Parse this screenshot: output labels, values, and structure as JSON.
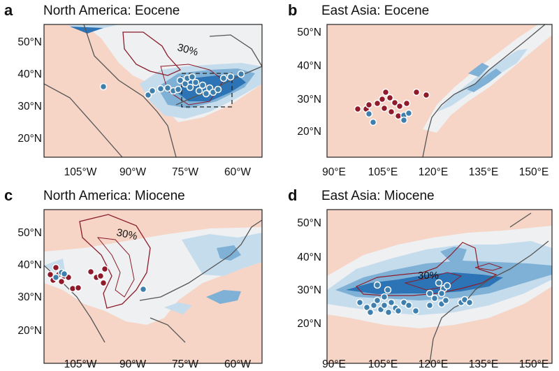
{
  "panels": [
    {
      "letter": "a",
      "title": "North America: Eocene",
      "lat_ticks": [
        "50°N",
        "40°N",
        "30°N",
        "20°N"
      ],
      "lon_ticks": [
        "105°W",
        "90°W",
        "75°W",
        "60°W"
      ],
      "contour_label": "30%"
    },
    {
      "letter": "b",
      "title": "East Asia: Eocene",
      "lat_ticks": [
        "50°N",
        "40°N",
        "30°N",
        "20°N"
      ],
      "lon_ticks": [
        "90°E",
        "105°E",
        "120°E",
        "135°E",
        "150°E"
      ],
      "contour_label": ""
    },
    {
      "letter": "c",
      "title": "North America: Miocene",
      "lat_ticks": [
        "50°N",
        "40°N",
        "30°N",
        "20°N"
      ],
      "lon_ticks": [
        "105°W",
        "90°W",
        "75°W",
        "60°W"
      ],
      "contour_label": "30%"
    },
    {
      "letter": "d",
      "title": "East Asia: Miocene",
      "lat_ticks": [
        "50°N",
        "40°N",
        "30°N",
        "20°N"
      ],
      "lon_ticks": [
        "90°E",
        "105°E",
        "120°E",
        "135°E",
        "150°E"
      ],
      "contour_label": "30%"
    }
  ],
  "colors": {
    "land_background": "#f6d4c6",
    "light_anomaly": "#eef0f2",
    "blue_light": "#c5dcec",
    "blue_mid": "#7fb1d6",
    "blue_dark": "#2c74b5",
    "contour": "#8b1c2c",
    "coastline": "#555555",
    "site_wet": "#3e7fae",
    "site_dry": "#8e1a2a"
  }
}
